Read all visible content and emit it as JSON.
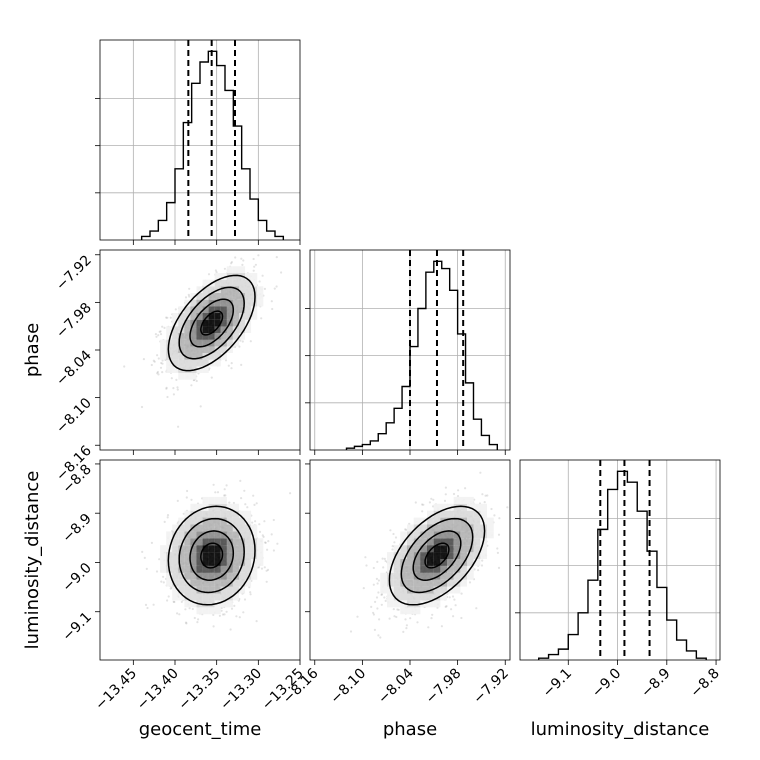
{
  "chart_data": {
    "type": "corner",
    "parameters": [
      "geocent_time",
      "phase",
      "luminosity_distance"
    ],
    "axes": {
      "geocent_time": {
        "label": "geocent_time",
        "range": [
          -13.49,
          -13.25
        ],
        "ticks": [
          -13.45,
          -13.4,
          -13.35,
          -13.3,
          -13.25
        ],
        "tick_labels": [
          "−13.45",
          "−13.40",
          "−13.35",
          "−13.30",
          "−13.25"
        ]
      },
      "phase": {
        "label": "phase",
        "range": [
          -8.166,
          -7.914
        ],
        "ticks": [
          -8.16,
          -8.1,
          -8.04,
          -7.98,
          -7.92
        ],
        "tick_labels": [
          "−8.16",
          "−8.10",
          "−8.04",
          "−7.98",
          "−7.92"
        ]
      },
      "luminosity_distance": {
        "label": "luminosity_distance",
        "range": [
          -9.198,
          -8.792
        ],
        "ticks": [
          -9.1,
          -9.0,
          -8.9,
          -8.8
        ],
        "tick_labels": [
          "−9.1",
          "−9.0",
          "−8.9",
          "−8.8"
        ]
      }
    },
    "histograms": [
      {
        "parameter": "geocent_time",
        "bin_edges": [
          -13.44,
          -13.43,
          -13.42,
          -13.41,
          -13.4,
          -13.39,
          -13.38,
          -13.37,
          -13.36,
          -13.35,
          -13.34,
          -13.33,
          -13.32,
          -13.31,
          -13.3,
          -13.29,
          -13.28,
          -13.27
        ],
        "counts": [
          2,
          5,
          11,
          21,
          40,
          66,
          88,
          100,
          106,
          98,
          84,
          64,
          40,
          23,
          11,
          5,
          2
        ],
        "quantiles": [
          -13.384,
          -13.356,
          -13.328
        ]
      },
      {
        "parameter": "phase",
        "bin_edges": [
          -8.12,
          -8.11,
          -8.1,
          -8.09,
          -8.08,
          -8.07,
          -8.06,
          -8.05,
          -8.04,
          -8.03,
          -8.02,
          -8.01,
          -8.0,
          -7.99,
          -7.98,
          -7.97,
          -7.96,
          -7.95,
          -7.94,
          -7.93
        ],
        "counts": [
          1,
          2,
          3,
          5,
          9,
          15,
          23,
          35,
          57,
          78,
          98,
          104,
          100,
          88,
          64,
          37,
          17,
          8,
          3
        ],
        "quantiles": [
          -8.04,
          -8.006,
          -7.973
        ]
      },
      {
        "parameter": "luminosity_distance",
        "bin_edges": [
          -9.16,
          -9.14,
          -9.12,
          -9.1,
          -9.08,
          -9.06,
          -9.04,
          -9.02,
          -9.0,
          -8.98,
          -8.96,
          -8.94,
          -8.92,
          -8.9,
          -8.88,
          -8.86,
          -8.84,
          -8.82
        ],
        "counts": [
          1,
          3,
          6,
          14,
          26,
          44,
          72,
          94,
          104,
          98,
          82,
          60,
          40,
          22,
          11,
          5,
          1
        ],
        "quantiles": [
          -9.035,
          -8.986,
          -8.935
        ]
      }
    ],
    "pairs": [
      {
        "x": "geocent_time",
        "y": "phase",
        "center": [
          -13.356,
          -8.006
        ],
        "sd": [
          0.026,
          0.03
        ],
        "correlation": 0.55
      },
      {
        "x": "geocent_time",
        "y": "luminosity_distance",
        "center": [
          -13.356,
          -8.986
        ],
        "sd": [
          0.026,
          0.05
        ],
        "correlation": 0.1
      },
      {
        "x": "phase",
        "y": "luminosity_distance",
        "center": [
          -8.006,
          -8.986
        ],
        "sd": [
          0.03,
          0.05
        ],
        "correlation": 0.5
      }
    ],
    "contour_levels": [
      0.5,
      1.0,
      1.5,
      2.0
    ],
    "grid": true,
    "colors": {
      "line": "#000000",
      "points": "#808080",
      "grid": "#b0b0b0"
    }
  }
}
